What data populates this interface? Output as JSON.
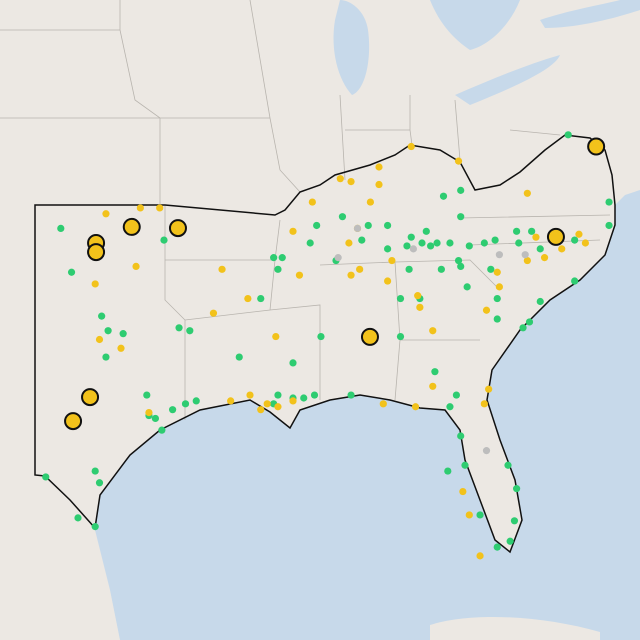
{
  "map": {
    "projection": {
      "lon0": -103,
      "lat0": 37
    },
    "groups": [
      {
        "color": "#2ecc71",
        "marker": "small",
        "points": [
          [
            -101.8,
            36.2
          ],
          [
            -101.3,
            34.7
          ],
          [
            -99.9,
            33.2
          ],
          [
            -99.6,
            32.7
          ],
          [
            -98.9,
            32.6
          ],
          [
            -99.7,
            31.8
          ],
          [
            -97.0,
            35.8
          ],
          [
            -96.3,
            32.8
          ],
          [
            -95.8,
            32.7
          ],
          [
            -97.8,
            30.5
          ],
          [
            -96.6,
            30.0
          ],
          [
            -97.4,
            29.7
          ],
          [
            -97.1,
            29.3
          ],
          [
            -97.7,
            29.8
          ],
          [
            -100.2,
            27.9
          ],
          [
            -100.0,
            27.5
          ],
          [
            -102.5,
            27.7
          ],
          [
            -101.0,
            26.3
          ],
          [
            -100.2,
            26.0
          ],
          [
            -91.9,
            35.2
          ],
          [
            -91.5,
            35.2
          ],
          [
            -91.7,
            34.8
          ],
          [
            -92.5,
            33.8
          ],
          [
            -93.5,
            31.8
          ],
          [
            -91.0,
            31.6
          ],
          [
            -89.7,
            32.5
          ],
          [
            -91.7,
            30.5
          ],
          [
            -91.0,
            30.4
          ],
          [
            -90.5,
            30.4
          ],
          [
            -90.0,
            30.5
          ],
          [
            -88.3,
            30.5
          ],
          [
            -91.9,
            30.2
          ],
          [
            -95.5,
            30.3
          ],
          [
            -96.0,
            30.2
          ],
          [
            -88.7,
            36.6
          ],
          [
            -89.9,
            36.3
          ],
          [
            -87.5,
            36.3
          ],
          [
            -86.6,
            36.3
          ],
          [
            -87.8,
            35.8
          ],
          [
            -89.0,
            35.1
          ],
          [
            -90.2,
            35.7
          ],
          [
            -86.6,
            35.5
          ],
          [
            -85.7,
            35.6
          ],
          [
            -85.5,
            35.9
          ],
          [
            -85.0,
            35.7
          ],
          [
            -84.8,
            36.1
          ],
          [
            -84.6,
            35.6
          ],
          [
            -84.3,
            35.7
          ],
          [
            -83.7,
            35.7
          ],
          [
            -83.2,
            36.6
          ],
          [
            -84.0,
            37.3
          ],
          [
            -83.2,
            37.5
          ],
          [
            -82.8,
            35.6
          ],
          [
            -83.3,
            35.1
          ],
          [
            -82.1,
            35.7
          ],
          [
            -81.6,
            35.8
          ],
          [
            -80.6,
            36.1
          ],
          [
            -79.9,
            36.1
          ],
          [
            -80.5,
            35.7
          ],
          [
            -79.5,
            35.5
          ],
          [
            -77.9,
            35.8
          ],
          [
            -76.3,
            36.3
          ],
          [
            -76.3,
            37.1
          ],
          [
            -78.2,
            39.4
          ],
          [
            -83.2,
            34.9
          ],
          [
            -81.8,
            34.8
          ],
          [
            -85.6,
            34.8
          ],
          [
            -86.0,
            33.8
          ],
          [
            -85.1,
            33.8
          ],
          [
            -86.0,
            32.5
          ],
          [
            -84.4,
            31.3
          ],
          [
            -83.4,
            30.5
          ],
          [
            -83.7,
            30.1
          ],
          [
            -83.2,
            29.1
          ],
          [
            -83.8,
            27.9
          ],
          [
            -83.0,
            28.1
          ],
          [
            -81.0,
            28.1
          ],
          [
            -80.6,
            27.3
          ],
          [
            -82.3,
            26.4
          ],
          [
            -80.7,
            26.2
          ],
          [
            -80.9,
            25.5
          ],
          [
            -81.5,
            25.3
          ],
          [
            -77.9,
            34.4
          ],
          [
            -80.3,
            32.8
          ],
          [
            -80.0,
            33.0
          ],
          [
            -81.5,
            33.1
          ],
          [
            -82.9,
            34.2
          ],
          [
            -79.5,
            33.7
          ],
          [
            -81.5,
            33.8
          ],
          [
            -84.1,
            34.8
          ]
        ]
      },
      {
        "color": "#f2c21b",
        "marker": "small",
        "points": [
          [
            -99.7,
            36.7
          ],
          [
            -98.1,
            36.9
          ],
          [
            -97.2,
            36.9
          ],
          [
            -94.3,
            34.8
          ],
          [
            -98.3,
            34.9
          ],
          [
            -100.2,
            34.3
          ],
          [
            -100.0,
            32.4
          ],
          [
            -99.0,
            32.1
          ],
          [
            -94.7,
            33.3
          ],
          [
            -97.7,
            29.9
          ],
          [
            -93.9,
            30.3
          ],
          [
            -93.0,
            30.5
          ],
          [
            -92.5,
            30.0
          ],
          [
            -92.2,
            30.2
          ],
          [
            -88.8,
            37.9
          ],
          [
            -88.3,
            37.8
          ],
          [
            -87.0,
            37.7
          ],
          [
            -87.0,
            38.3
          ],
          [
            -85.5,
            39.0
          ],
          [
            -83.3,
            38.5
          ],
          [
            -87.4,
            37.1
          ],
          [
            -90.1,
            37.1
          ],
          [
            -88.4,
            35.7
          ],
          [
            -88.0,
            36.2
          ],
          [
            -88.3,
            34.6
          ],
          [
            -87.9,
            34.8
          ],
          [
            -86.4,
            35.1
          ],
          [
            -86.6,
            34.4
          ],
          [
            -85.2,
            33.9
          ],
          [
            -85.1,
            33.5
          ],
          [
            -84.5,
            32.7
          ],
          [
            -84.5,
            30.8
          ],
          [
            -82.0,
            33.4
          ],
          [
            -81.4,
            34.2
          ],
          [
            -81.5,
            34.7
          ],
          [
            -80.1,
            35.1
          ],
          [
            -79.7,
            35.9
          ],
          [
            -77.7,
            36.0
          ],
          [
            -77.4,
            35.7
          ],
          [
            -78.5,
            35.5
          ],
          [
            -79.3,
            35.2
          ],
          [
            -85.3,
            30.1
          ],
          [
            -86.8,
            30.2
          ],
          [
            -91.8,
            32.5
          ],
          [
            -90.7,
            34.6
          ],
          [
            -91.0,
            36.1
          ],
          [
            -91.0,
            30.3
          ],
          [
            -93.1,
            33.8
          ],
          [
            -81.9,
            30.7
          ],
          [
            -82.1,
            30.2
          ],
          [
            -83.1,
            27.2
          ],
          [
            -82.8,
            26.4
          ],
          [
            -82.3,
            25.0
          ],
          [
            -80.1,
            37.4
          ],
          [
            -91.7,
            30.1
          ]
        ]
      },
      {
        "color": "#bdbdbd",
        "marker": "small",
        "points": [
          [
            -88.9,
            35.2
          ],
          [
            -88.0,
            36.2
          ],
          [
            -81.4,
            35.3
          ],
          [
            -80.2,
            35.3
          ],
          [
            -85.4,
            35.5
          ],
          [
            -82.0,
            28.6
          ]
        ]
      },
      {
        "color": "#f2c21b",
        "marker": "large",
        "points": [
          [
            -76.9,
            39.0
          ],
          [
            -98.5,
            36.25
          ],
          [
            -96.35,
            36.21
          ],
          [
            -100.16,
            35.7
          ],
          [
            -100.16,
            35.39
          ],
          [
            -78.77,
            35.91
          ],
          [
            -87.42,
            32.49
          ],
          [
            -100.44,
            30.43
          ],
          [
            -101.23,
            29.61
          ]
        ]
      }
    ]
  }
}
